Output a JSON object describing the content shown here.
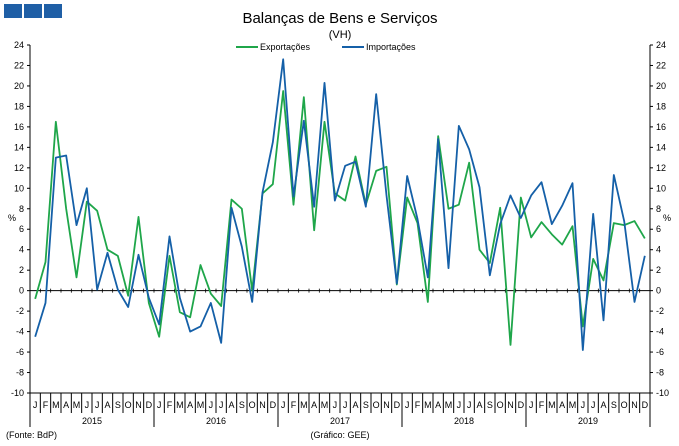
{
  "logo": {
    "name": "bdp-logo"
  },
  "chart_data": {
    "type": "line",
    "title": "Balanças de Bens e Serviços",
    "subtitle": "(VH)",
    "ylabel_left": "%",
    "ylabel_right": "%",
    "ylim": [
      -10,
      24
    ],
    "yticks": [
      -10,
      -8,
      -6,
      -4,
      -2,
      0,
      2,
      4,
      6,
      8,
      10,
      12,
      14,
      16,
      18,
      20,
      22,
      24
    ],
    "grid": false,
    "legend_position": "top-center",
    "month_labels": [
      "J",
      "F",
      "M",
      "A",
      "M",
      "J",
      "J",
      "A",
      "S",
      "O",
      "N",
      "D"
    ],
    "years": [
      "2015",
      "2016",
      "2017",
      "2018",
      "2019"
    ],
    "x_start": "2015-01",
    "x_end": "2019-12",
    "series": [
      {
        "name": "Exportações",
        "color": "#1fa64a",
        "values": [
          -0.8,
          2.8,
          16.5,
          8.0,
          1.3,
          8.7,
          7.8,
          4.0,
          3.4,
          -0.5,
          7.2,
          -1.2,
          -4.5,
          3.4,
          -2.1,
          -2.6,
          2.5,
          -0.3,
          -1.5,
          8.9,
          8.0,
          0.0,
          9.5,
          10.4,
          19.5,
          8.4,
          18.9,
          5.9,
          16.5,
          9.5,
          8.8,
          13.1,
          8.4,
          11.7,
          12.1,
          0.6,
          9.1,
          6.6,
          -1.1,
          15.1,
          8.0,
          8.4,
          12.5,
          4.0,
          2.7,
          8.1,
          -5.3,
          9.1,
          5.2,
          6.7,
          5.5,
          4.5,
          6.3,
          -3.5,
          3.1,
          1.0,
          6.6,
          6.4,
          6.8,
          5.1
        ]
      },
      {
        "name": "Importações",
        "color": "#1560a8",
        "values": [
          -4.5,
          -1.2,
          13.0,
          13.2,
          6.4,
          10.0,
          0.1,
          3.7,
          0.1,
          -1.6,
          3.5,
          -0.7,
          -3.3,
          5.3,
          -0.7,
          -4.0,
          -3.5,
          -1.2,
          -5.1,
          8.1,
          4.3,
          -1.1,
          9.6,
          14.5,
          22.6,
          9.2,
          16.6,
          8.2,
          20.3,
          8.8,
          12.2,
          12.6,
          8.2,
          19.2,
          9.3,
          0.7,
          11.2,
          7.0,
          1.3,
          14.8,
          2.2,
          16.1,
          13.8,
          10.1,
          1.5,
          6.5,
          9.3,
          7.1,
          9.3,
          10.6,
          6.5,
          8.3,
          10.5,
          -5.8,
          7.5,
          -2.9,
          11.3,
          6.8,
          -1.1,
          3.4
        ]
      }
    ]
  },
  "footer": {
    "source": "(Fonte: BdP)",
    "credit": "(Gráfico: GEE)"
  }
}
